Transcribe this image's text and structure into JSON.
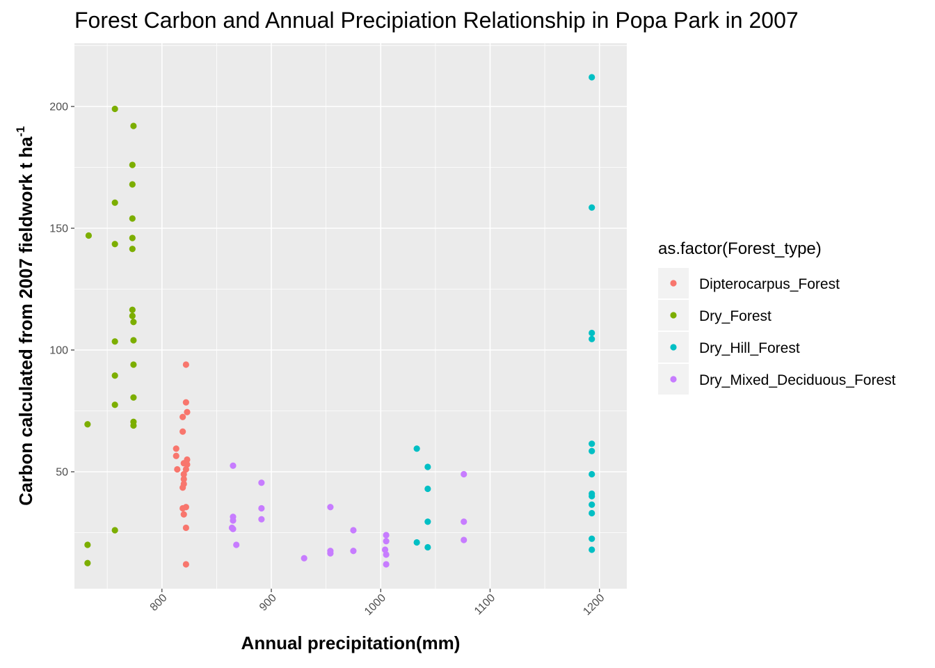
{
  "chart_data": {
    "type": "scatter",
    "title": "Forest Carbon and Annual Precipiation Relationship in Popa Park in 2007",
    "xlabel": "Annual precipitation(mm)",
    "ylabel_main": "Carbon calculated from 2007 fieldwork t ha",
    "ylabel_sup": "-1",
    "xlim": [
      720,
      1225
    ],
    "ylim": [
      2,
      226
    ],
    "x_ticks": [
      800,
      900,
      1000,
      1100,
      1200
    ],
    "y_ticks": [
      50,
      100,
      150,
      200
    ],
    "x_tick_labels": [
      "800",
      "900",
      "1000",
      "1100",
      "1200"
    ],
    "y_tick_labels": [
      "50",
      "100",
      "150",
      "200"
    ],
    "legend_title": "as.factor(Forest_type)",
    "legend_position": "right",
    "grid": true,
    "series": [
      {
        "name": "Dipterocarpus_Forest",
        "color": "#F8766D",
        "points": [
          [
            822,
            94
          ],
          [
            822,
            78.5
          ],
          [
            823,
            74.5
          ],
          [
            819,
            72.5
          ],
          [
            819,
            66.5
          ],
          [
            813,
            59.5
          ],
          [
            813,
            56.5
          ],
          [
            820,
            53.5
          ],
          [
            823,
            55
          ],
          [
            823,
            53
          ],
          [
            822,
            51
          ],
          [
            814,
            51
          ],
          [
            820,
            49
          ],
          [
            820,
            47
          ],
          [
            820,
            45
          ],
          [
            819,
            43.5
          ],
          [
            819,
            35
          ],
          [
            822,
            35.5
          ],
          [
            820,
            32.5
          ],
          [
            822,
            27
          ],
          [
            822,
            12
          ]
        ]
      },
      {
        "name": "Dry_Forest",
        "color": "#7CAE00",
        "points": [
          [
            757,
            199
          ],
          [
            774,
            192
          ],
          [
            773,
            176
          ],
          [
            773,
            168
          ],
          [
            757,
            160.5
          ],
          [
            773,
            154
          ],
          [
            733,
            147
          ],
          [
            773,
            146
          ],
          [
            757,
            143.5
          ],
          [
            773,
            141.5
          ],
          [
            773,
            116.5
          ],
          [
            773,
            114
          ],
          [
            774,
            111.5
          ],
          [
            774,
            104
          ],
          [
            757,
            103.5
          ],
          [
            774,
            94
          ],
          [
            757,
            89.5
          ],
          [
            774,
            80.5
          ],
          [
            757,
            77.5
          ],
          [
            774,
            70.5
          ],
          [
            774,
            69
          ],
          [
            732,
            69.5
          ],
          [
            757,
            26
          ],
          [
            732,
            20
          ],
          [
            732,
            12.5
          ]
        ]
      },
      {
        "name": "Dry_Hill_Forest",
        "color": "#00BFC4",
        "points": [
          [
            1193,
            212
          ],
          [
            1193,
            158.5
          ],
          [
            1193,
            107
          ],
          [
            1193,
            104.5
          ],
          [
            1193,
            61.5
          ],
          [
            1193,
            58.5
          ],
          [
            1193,
            49
          ],
          [
            1193,
            41
          ],
          [
            1193,
            40
          ],
          [
            1193,
            36.5
          ],
          [
            1193,
            33
          ],
          [
            1193,
            22.5
          ],
          [
            1193,
            18
          ],
          [
            1033,
            59.5
          ],
          [
            1043,
            52
          ],
          [
            1043,
            43
          ],
          [
            1043,
            29.5
          ],
          [
            1033,
            21
          ],
          [
            1043,
            19
          ]
        ]
      },
      {
        "name": "Dry_Mixed_Deciduous_Forest",
        "color": "#C77CFF",
        "points": [
          [
            865,
            52.5
          ],
          [
            865,
            31.5
          ],
          [
            865,
            30
          ],
          [
            864,
            27
          ],
          [
            865,
            26.5
          ],
          [
            868,
            20
          ],
          [
            891,
            45.5
          ],
          [
            891,
            35
          ],
          [
            891,
            30.5
          ],
          [
            930,
            14.5
          ],
          [
            954,
            35.5
          ],
          [
            954,
            17.5
          ],
          [
            954,
            16.5
          ],
          [
            975,
            26
          ],
          [
            975,
            17.5
          ],
          [
            1005,
            24
          ],
          [
            1005,
            21.5
          ],
          [
            1004,
            18
          ],
          [
            1005,
            16
          ],
          [
            1005,
            12
          ],
          [
            1076,
            49
          ],
          [
            1076,
            29.5
          ],
          [
            1076,
            22
          ]
        ]
      }
    ]
  }
}
